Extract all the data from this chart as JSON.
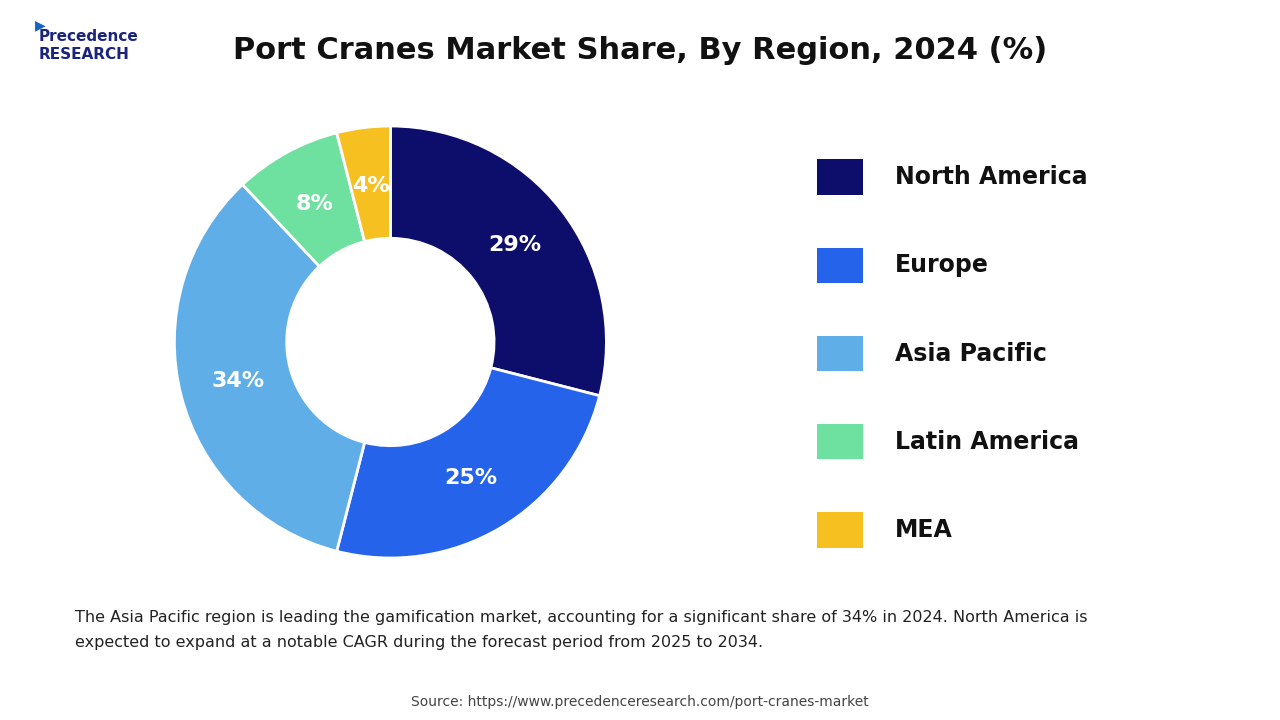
{
  "title": "Port Cranes Market Share, By Region, 2024 (%)",
  "slices": [
    29,
    25,
    34,
    8,
    4
  ],
  "labels": [
    "North America",
    "Europe",
    "Asia Pacific",
    "Latin America",
    "MEA"
  ],
  "colors": [
    "#0d0d6b",
    "#2563eb",
    "#60aee8",
    "#6ee0a0",
    "#f5c020"
  ],
  "pct_labels": [
    "29%",
    "25%",
    "34%",
    "8%",
    "4%"
  ],
  "startangle": 90,
  "legend_labels": [
    "North America",
    "Europe",
    "Asia Pacific",
    "Latin America",
    "MEA"
  ],
  "note_text": "The Asia Pacific region is leading the gamification market, accounting for a significant share of 34% in 2024. North America is\nexpected to expand at a notable CAGR during the forecast period from 2025 to 2034.",
  "source_text": "Source: https://www.precedenceresearch.com/port-cranes-market",
  "bg_color": "#ffffff",
  "note_bg_color": "#e8f0fa",
  "border_color": "#cccccc"
}
